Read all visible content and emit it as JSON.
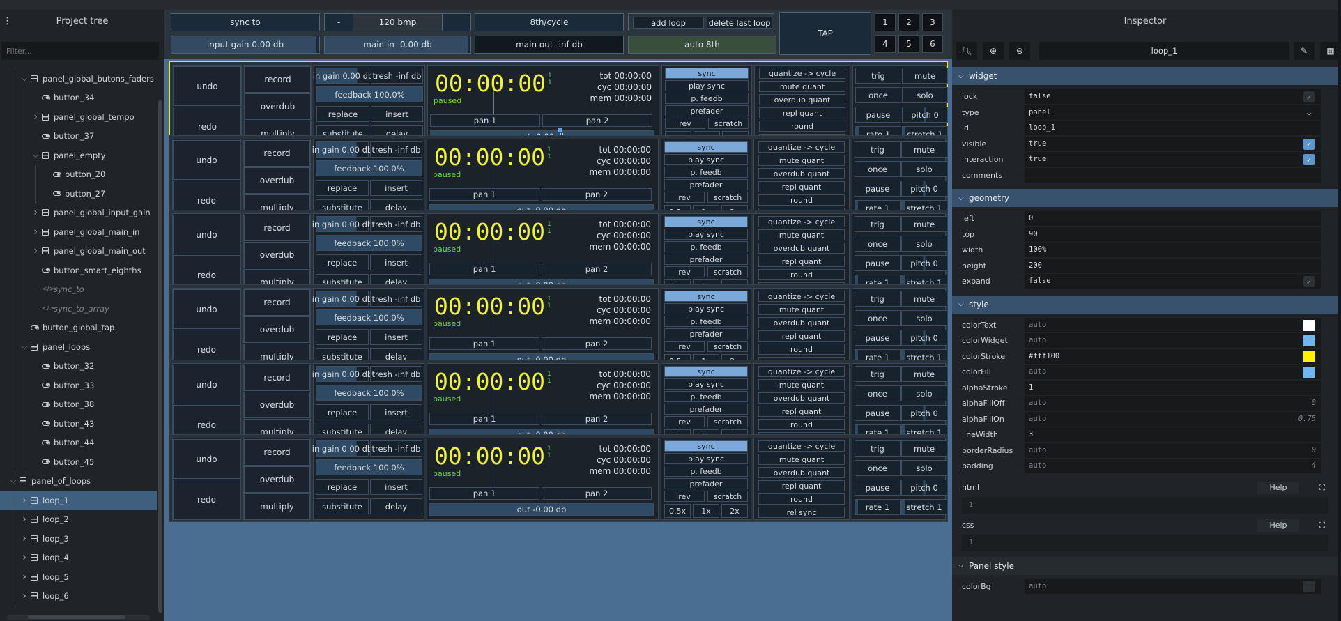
{
  "left_panel": {
    "title": "Project tree",
    "filter_placeholder": "Filter...",
    "nodes": [
      {
        "label": "panel_global_butons_faders",
        "kind": "panel",
        "depth": 1,
        "twisty": "down"
      },
      {
        "label": "button_34",
        "kind": "button",
        "depth": 2
      },
      {
        "label": "panel_global_tempo",
        "kind": "panel",
        "depth": 2,
        "twisty": "right"
      },
      {
        "label": "button_37",
        "kind": "button",
        "depth": 2
      },
      {
        "label": "panel_empty",
        "kind": "panel",
        "depth": 2,
        "twisty": "down"
      },
      {
        "label": "button_20",
        "kind": "button",
        "depth": 3
      },
      {
        "label": "button_27",
        "kind": "button",
        "depth": 3
      },
      {
        "label": "panel_global_input_gain",
        "kind": "panel",
        "depth": 2,
        "twisty": "right"
      },
      {
        "label": "panel_global_main_in",
        "kind": "panel",
        "depth": 2,
        "twisty": "right"
      },
      {
        "label": "panel_global_main_out",
        "kind": "panel",
        "depth": 2,
        "twisty": "right"
      },
      {
        "label": "button_smart_eighths",
        "kind": "button",
        "depth": 2
      },
      {
        "label": "sync_to",
        "kind": "script",
        "depth": 2
      },
      {
        "label": "sync_to_array",
        "kind": "script",
        "depth": 2
      },
      {
        "label": "button_global_tap",
        "kind": "button",
        "depth": 1
      },
      {
        "label": "panel_loops",
        "kind": "panel",
        "depth": 1,
        "twisty": "down"
      },
      {
        "label": "button_32",
        "kind": "button",
        "depth": 2
      },
      {
        "label": "button_33",
        "kind": "button",
        "depth": 2
      },
      {
        "label": "button_38",
        "kind": "button",
        "depth": 2
      },
      {
        "label": "button_43",
        "kind": "button",
        "depth": 2
      },
      {
        "label": "button_44",
        "kind": "button",
        "depth": 2
      },
      {
        "label": "button_45",
        "kind": "button",
        "depth": 2
      },
      {
        "label": "panel_of_loops",
        "kind": "panel",
        "depth": 0,
        "twisty": "down"
      },
      {
        "label": "loop_1",
        "kind": "panel",
        "depth": 1,
        "twisty": "right",
        "selected": true
      },
      {
        "label": "loop_2",
        "kind": "panel",
        "depth": 1,
        "twisty": "right"
      },
      {
        "label": "loop_3",
        "kind": "panel",
        "depth": 1,
        "twisty": "right"
      },
      {
        "label": "loop_4",
        "kind": "panel",
        "depth": 1,
        "twisty": "right"
      },
      {
        "label": "loop_5",
        "kind": "panel",
        "depth": 1,
        "twisty": "right"
      },
      {
        "label": "loop_6",
        "kind": "panel",
        "depth": 1,
        "twisty": "right"
      }
    ]
  },
  "toolbar": {
    "sync_to": "sync to",
    "bpm_minus": "-",
    "bpm": "120 bmp",
    "bpm_plus": "",
    "cycle": "8th/cycle",
    "add_loop": "add loop",
    "delete_last_loop": "delete last loop",
    "tap": "TAP",
    "numbers": [
      "1",
      "2",
      "3",
      "4",
      "5",
      "6"
    ],
    "input_gain": "input gain 0.00 db",
    "main_in": "main in -0.00 db",
    "main_out": "main out -inf db",
    "auto_8th": "auto 8th"
  },
  "loop_labels": {
    "undo": "undo",
    "redo": "redo",
    "record": "record",
    "overdub": "overdub",
    "multiply": "multiply",
    "gain": "in gain 0.00 db",
    "thresh": "tresh -inf db",
    "feedback": "feedback 100.0%",
    "replace": "replace",
    "insert": "insert",
    "substitute": "substitute",
    "delay": "delay",
    "timer": "00:00:00",
    "paused": "paused",
    "one_a": "1",
    "one_b": "1",
    "tot": "tot 00:00:00",
    "cyc": "cyc 00:00:00",
    "mem": "mem 00:00:00",
    "pan1": "pan 1",
    "pan2": "pan 2",
    "out": "out -0.00 db",
    "sync": "sync",
    "play_sync": "play sync",
    "p_feedb": "p. feedb",
    "prefader": "prefader",
    "rev": "rev",
    "scratch": "scratch",
    "speed_half": "0.5x",
    "speed_1": "1x",
    "speed_2": "2x",
    "quantize": "quantize -> cycle",
    "mute_quant": "mute quant",
    "overdub_quant": "overdub quant",
    "repl_quant": "repl quant",
    "round": "round",
    "rel_sync": "rel sync",
    "trig": "trig",
    "mute": "mute",
    "once": "once",
    "solo": "solo",
    "pause": "pause",
    "pitch": "pitch 0",
    "rate": "rate 1",
    "stretch": "stretch 1"
  },
  "loops_count": 6,
  "inspector": {
    "title": "Inspector",
    "id_value": "loop_1",
    "widget": {
      "title": "widget",
      "rows": [
        {
          "key": "lock",
          "value": "false",
          "control": "check-off"
        },
        {
          "key": "type",
          "value": "panel",
          "control": "chevron"
        },
        {
          "key": "id",
          "value": "loop_1"
        },
        {
          "key": "visible",
          "value": "true",
          "control": "check-on"
        },
        {
          "key": "interaction",
          "value": "true",
          "control": "check-on"
        },
        {
          "key": "comments",
          "value": ""
        }
      ]
    },
    "geometry": {
      "title": "geometry",
      "rows": [
        {
          "key": "left",
          "value": "0"
        },
        {
          "key": "top",
          "value": "90"
        },
        {
          "key": "width",
          "value": "100%"
        },
        {
          "key": "height",
          "value": "200"
        },
        {
          "key": "expand",
          "value": "false",
          "control": "check-off"
        }
      ]
    },
    "style": {
      "title": "style",
      "rows": [
        {
          "key": "colorText",
          "value": "auto",
          "auto": true,
          "swatch": "#ffffff"
        },
        {
          "key": "colorWidget",
          "value": "auto",
          "auto": true,
          "swatch": "#6fb6f3"
        },
        {
          "key": "colorStroke",
          "value": "#fff100",
          "swatch": "#fff100"
        },
        {
          "key": "colorFill",
          "value": "auto",
          "auto": true,
          "swatch": "#6fb6f3"
        },
        {
          "key": "alphaStroke",
          "value": "1"
        },
        {
          "key": "alphaFillOff",
          "value": "auto",
          "auto": true,
          "right": "0"
        },
        {
          "key": "alphaFillOn",
          "value": "auto",
          "auto": true,
          "right": "0.75"
        },
        {
          "key": "lineWidth",
          "value": "3"
        },
        {
          "key": "borderRadius",
          "value": "auto",
          "auto": true,
          "right": "0"
        },
        {
          "key": "padding",
          "value": "auto",
          "auto": true,
          "right": "4"
        }
      ]
    },
    "html_label": "html",
    "css_label": "css",
    "help_label": "Help",
    "line_no": "1",
    "panel_style": {
      "title": "Panel style",
      "rows": [
        {
          "key": "colorBg",
          "value": "auto",
          "auto": true,
          "swatch": "#2c3136"
        }
      ]
    }
  },
  "colors": {
    "accent": "#fff100",
    "selection": "#3f5f7f"
  }
}
